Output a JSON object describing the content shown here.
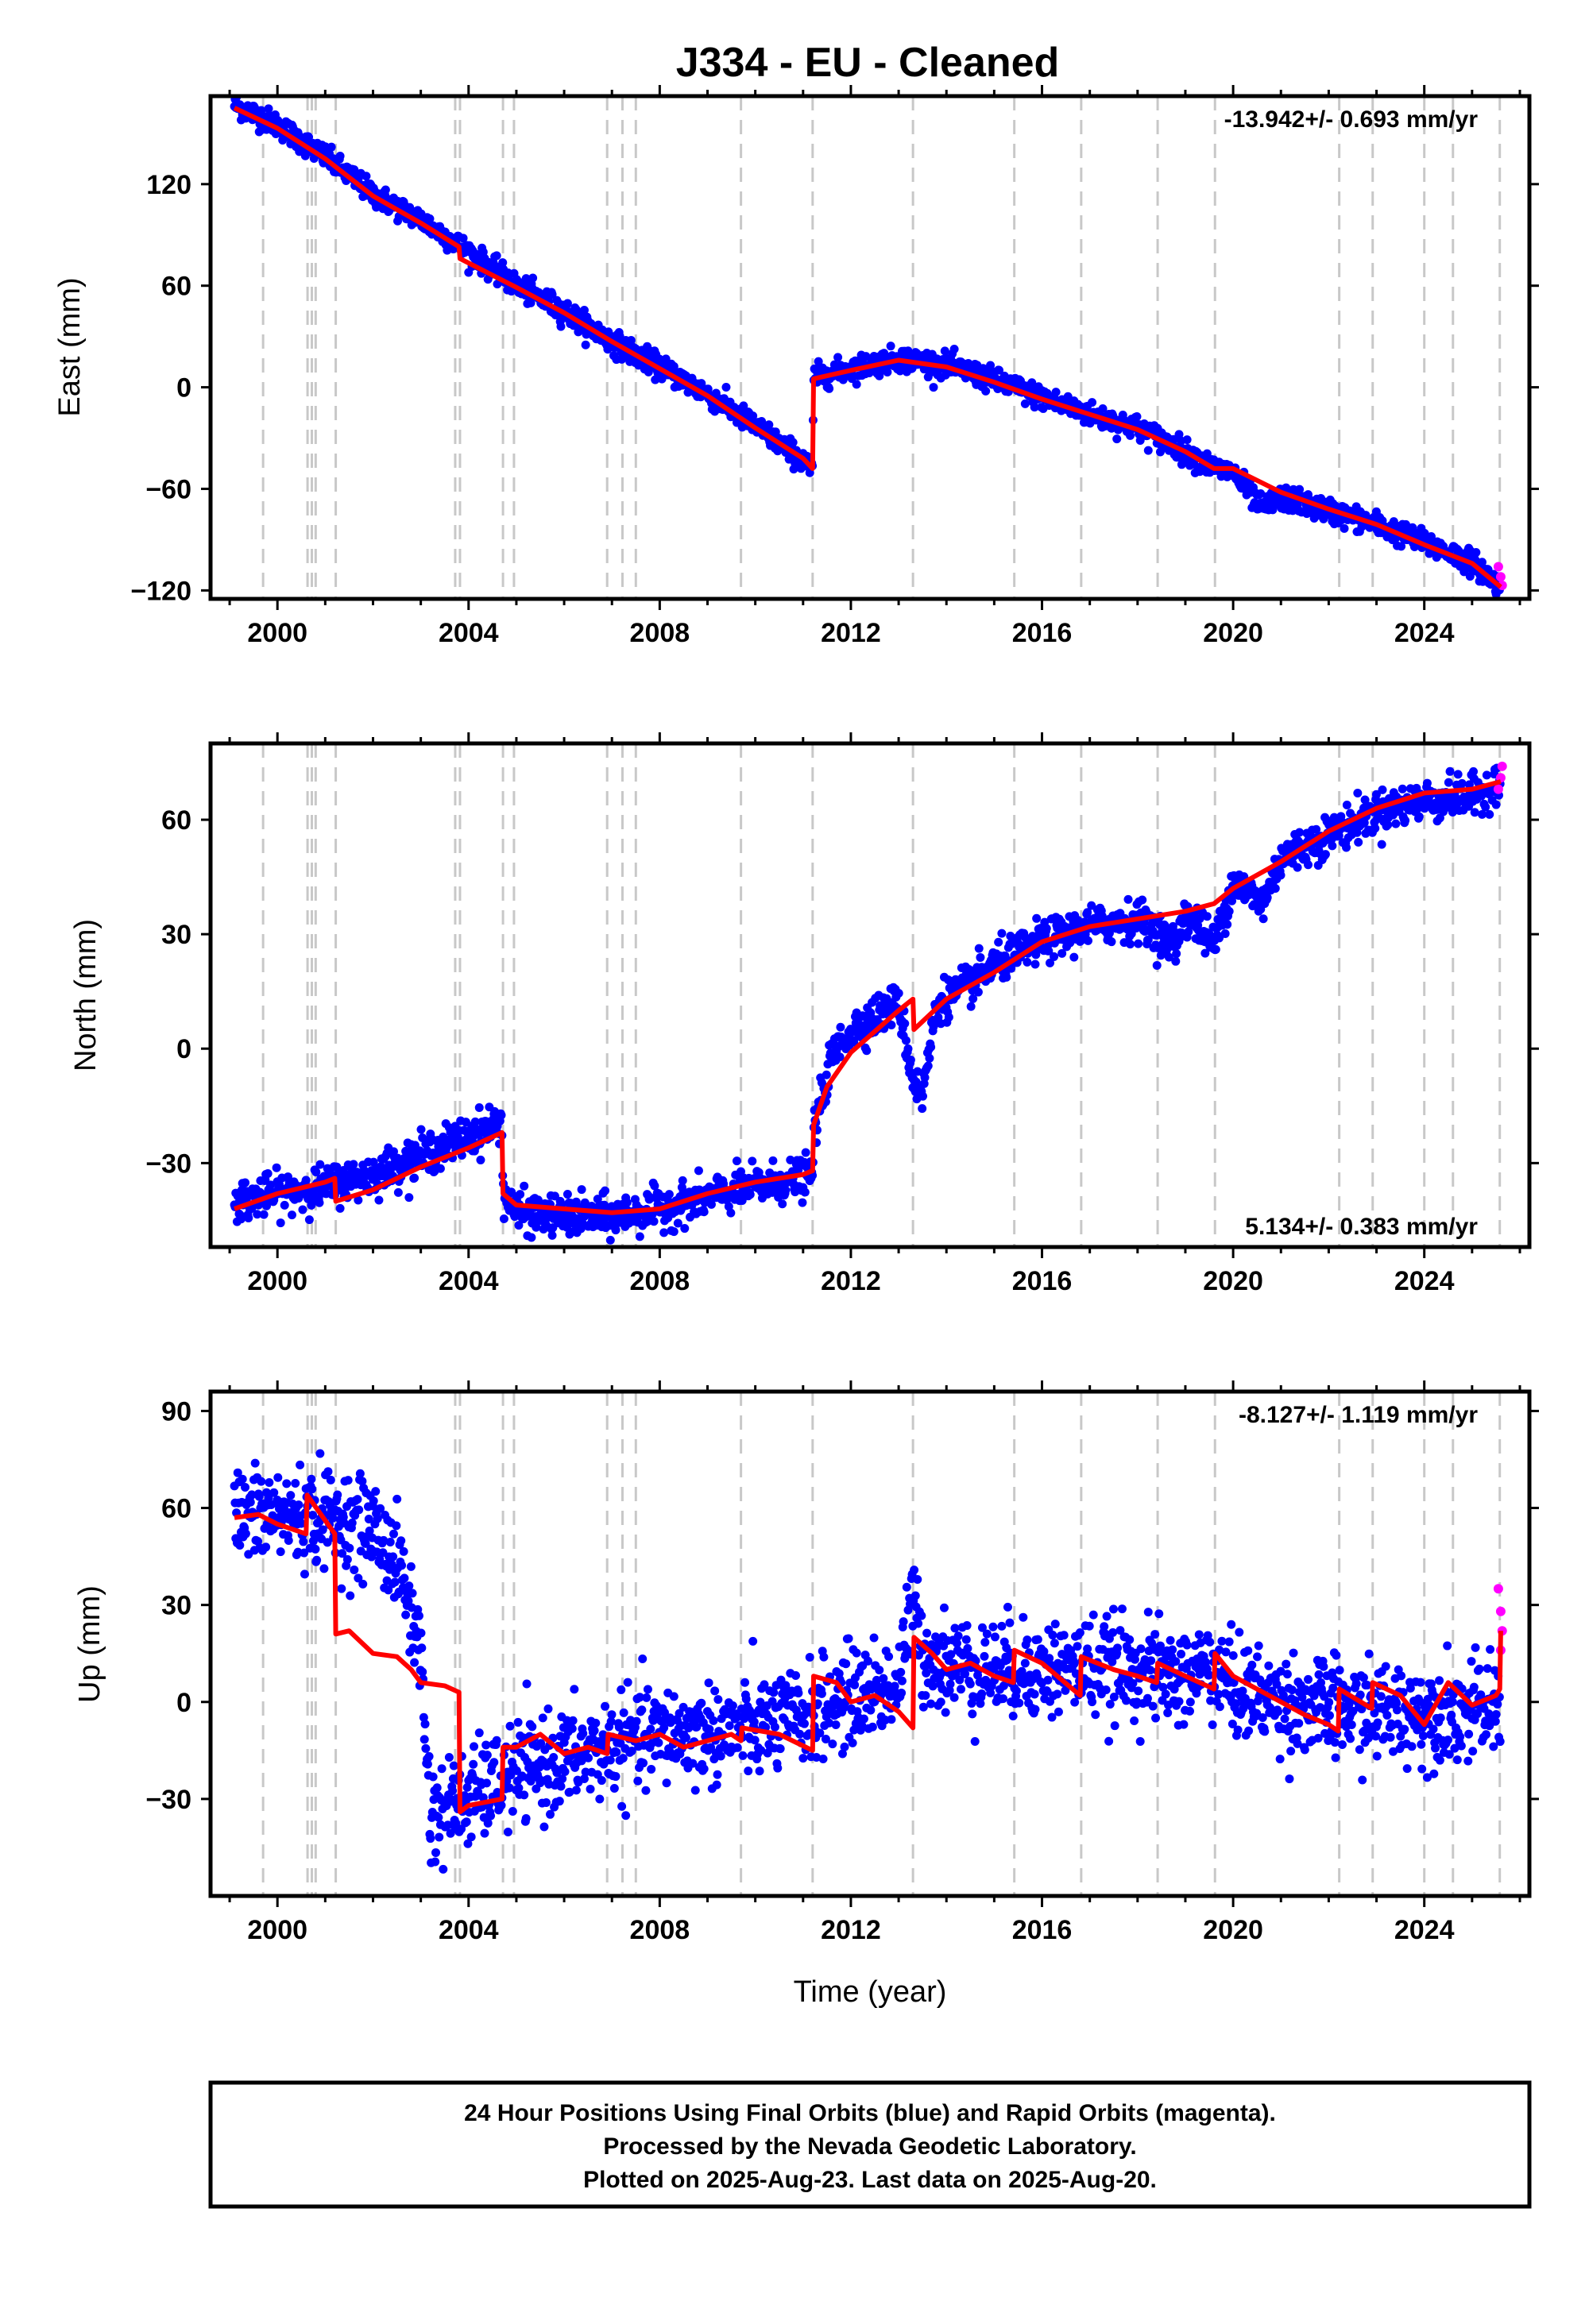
{
  "title": "J334  - EU - Cleaned",
  "xlabel": "Time (year)",
  "footer": {
    "line1": "24 Hour Positions Using Final Orbits (blue) and Rapid Orbits (magenta).",
    "line2": "Processed by the Nevada Geodetic Laboratory.",
    "line3": "Plotted on 2025-Aug-23. Last data on 2025-Aug-20."
  },
  "colors": {
    "final": "#0000ff",
    "rapid": "#ff00ff",
    "model": "#ff0000",
    "event_lines": "#c8c8c8"
  },
  "chart_data": [
    {
      "type": "scatter",
      "id": "east",
      "ylabel": "East (mm)",
      "rate_text": "-13.942+/- 0.693 mm/yr",
      "xlim": [
        1998.6,
        2026.2
      ],
      "ylim": [
        -125,
        172
      ],
      "yticks": [
        -120,
        -60,
        0,
        60,
        120
      ],
      "xticks": [
        2000,
        2004,
        2008,
        2012,
        2016,
        2020,
        2024
      ],
      "grid": false,
      "noise": 3.5,
      "series": [
        {
          "name": "Final Orbits",
          "color": "#0000ff",
          "x": [
            1999.1,
            2000.0,
            2001.0,
            2002.0,
            2003.0,
            2004.0,
            2005.0,
            2006.0,
            2007.0,
            2008.0,
            2009.0,
            2010.0,
            2011.0,
            2011.2,
            2011.22,
            2012.0,
            2013.0,
            2014.0,
            2015.0,
            2016.0,
            2017.0,
            2018.0,
            2019.0,
            2019.6,
            2020.0,
            2020.6,
            2021.0,
            2022.0,
            2023.0,
            2024.0,
            2025.0,
            2025.6
          ],
          "y": [
            167,
            155,
            136,
            114,
            99,
            80,
            60,
            45,
            27,
            12,
            -4,
            -23,
            -43,
            -50,
            6,
            11,
            17,
            13,
            4,
            -6,
            -16,
            -24,
            -38,
            -48,
            -50,
            -72,
            -65,
            -73,
            -81,
            -92,
            -103,
            -118
          ]
        },
        {
          "name": "Rapid Orbits",
          "color": "#ff00ff",
          "x": [
            2025.55,
            2025.6,
            2025.63
          ],
          "y": [
            -106,
            -112,
            -117
          ]
        },
        {
          "name": "Model",
          "color": "#ff0000",
          "x": [
            1999.1,
            2000.0,
            2001.0,
            2002.0,
            2003.0,
            2003.8,
            2003.82,
            2005.0,
            2006.0,
            2007.0,
            2008.0,
            2009.0,
            2010.0,
            2011.0,
            2011.2,
            2011.22,
            2012.0,
            2013.0,
            2014.0,
            2015.0,
            2016.0,
            2017.0,
            2018.0,
            2019.0,
            2019.6,
            2020.0,
            2021.0,
            2022.0,
            2023.0,
            2024.0,
            2025.0,
            2025.6
          ],
          "y": [
            165,
            153,
            135,
            113,
            97,
            83,
            76,
            59,
            44,
            27,
            11,
            -5,
            -24,
            -42,
            -48,
            5,
            10,
            16,
            12,
            3,
            -7,
            -16,
            -25,
            -38,
            -48,
            -48,
            -62,
            -72,
            -81,
            -93,
            -104,
            -118
          ]
        }
      ]
    },
    {
      "type": "scatter",
      "id": "north",
      "ylabel": "North (mm)",
      "rate_text": "5.134+/- 0.383 mm/yr",
      "xlim": [
        1998.6,
        2026.2
      ],
      "ylim": [
        -52,
        80
      ],
      "yticks": [
        -30,
        0,
        30,
        60
      ],
      "xticks": [
        2000,
        2004,
        2008,
        2012,
        2016,
        2020,
        2024
      ],
      "grid": false,
      "noise": 2.6,
      "series": [
        {
          "name": "Final Orbits",
          "color": "#0000ff",
          "x": [
            1999.1,
            2000.0,
            2001.0,
            2002.0,
            2003.0,
            2004.0,
            2004.7,
            2004.72,
            2005.0,
            2006.0,
            2007.0,
            2008.0,
            2009.0,
            2010.0,
            2011.0,
            2011.2,
            2011.22,
            2011.6,
            2012.0,
            2013.0,
            2013.3,
            2013.5,
            2013.8,
            2014.5,
            2015.0,
            2016.0,
            2017.0,
            2018.0,
            2018.8,
            2019.0,
            2019.6,
            2020.0,
            2020.6,
            2021.0,
            2022.0,
            2023.0,
            2024.0,
            2025.0,
            2025.6
          ],
          "y": [
            -40,
            -38,
            -36,
            -33,
            -28,
            -23,
            -19,
            -38,
            -43,
            -44,
            -44,
            -42,
            -39,
            -36,
            -34,
            -33,
            -22,
            -2,
            5,
            12,
            -8,
            -12,
            12,
            17,
            22,
            28,
            32,
            34,
            27,
            36,
            27,
            44,
            38,
            50,
            56,
            62,
            65,
            66,
            70
          ]
        },
        {
          "name": "Rapid Orbits",
          "color": "#ff00ff",
          "x": [
            2025.55,
            2025.6,
            2025.63
          ],
          "y": [
            68,
            71,
            74
          ]
        },
        {
          "name": "Model",
          "color": "#ff0000",
          "x": [
            1999.1,
            2000.0,
            2001.0,
            2001.2,
            2001.22,
            2002.0,
            2003.0,
            2004.0,
            2004.7,
            2004.72,
            2005.0,
            2006.0,
            2007.0,
            2008.0,
            2009.0,
            2010.0,
            2011.0,
            2011.2,
            2011.22,
            2011.5,
            2012.0,
            2013.0,
            2013.3,
            2013.32,
            2014.0,
            2015.0,
            2016.0,
            2017.0,
            2018.0,
            2019.0,
            2019.6,
            2020.0,
            2021.0,
            2022.0,
            2023.0,
            2024.0,
            2025.0,
            2025.6
          ],
          "y": [
            -42,
            -38,
            -35,
            -34,
            -40,
            -37,
            -31,
            -26,
            -22,
            -38,
            -41,
            -42,
            -43,
            -42,
            -38,
            -35,
            -33,
            -32,
            -20,
            -10,
            -1,
            10,
            13,
            5,
            13,
            20,
            28,
            32,
            34,
            36,
            38,
            42,
            49,
            57,
            63,
            67,
            68,
            70
          ]
        }
      ]
    },
    {
      "type": "scatter",
      "id": "up",
      "ylabel": "Up (mm)",
      "rate_text": "-8.127+/- 1.119 mm/yr",
      "xlim": [
        1998.6,
        2026.2
      ],
      "ylim": [
        -60,
        96
      ],
      "yticks": [
        -30,
        0,
        30,
        60,
        90
      ],
      "xticks": [
        2000,
        2004,
        2008,
        2012,
        2016,
        2020,
        2024
      ],
      "grid": false,
      "noise": 7.5,
      "series": [
        {
          "name": "Final Orbits",
          "color": "#0000ff",
          "x": [
            1999.1,
            2000.0,
            2001.0,
            2002.0,
            2002.6,
            2003.0,
            2003.2,
            2004.0,
            2005.0,
            2006.0,
            2007.0,
            2008.0,
            2009.0,
            2010.0,
            2011.0,
            2012.0,
            2013.0,
            2013.3,
            2013.5,
            2014.0,
            2015.0,
            2016.0,
            2017.0,
            2018.0,
            2019.0,
            2019.5,
            2020.0,
            2021.0,
            2022.0,
            2023.0,
            2024.0,
            2025.0,
            2025.6
          ],
          "y": [
            57,
            58,
            57,
            54,
            40,
            15,
            -35,
            -30,
            -22,
            -18,
            -14,
            -10,
            -10,
            -8,
            -5,
            2,
            5,
            30,
            15,
            12,
            10,
            10,
            11,
            10,
            7,
            12,
            4,
            0,
            -2,
            -3,
            -3,
            -3,
            -2
          ]
        },
        {
          "name": "Rapid Orbits",
          "color": "#ff00ff",
          "x": [
            2025.55,
            2025.6,
            2025.63,
            2025.6
          ],
          "y": [
            35,
            28,
            22,
            16
          ]
        },
        {
          "name": "Model",
          "color": "#ff0000",
          "x": [
            1999.1,
            1999.6,
            2000.0,
            2000.6,
            2000.62,
            2001.2,
            2001.22,
            2001.5,
            2002.0,
            2002.5,
            2002.8,
            2003.0,
            2003.5,
            2003.8,
            2003.82,
            2004.0,
            2004.7,
            2004.72,
            2005.0,
            2005.5,
            2006.0,
            2006.5,
            2006.9,
            2006.92,
            2007.5,
            2008.0,
            2008.5,
            2009.0,
            2009.5,
            2009.7,
            2009.72,
            2010.5,
            2011.2,
            2011.22,
            2011.7,
            2012.0,
            2012.5,
            2013.0,
            2013.3,
            2013.32,
            2013.7,
            2014.0,
            2014.5,
            2015.0,
            2015.4,
            2015.42,
            2016.0,
            2016.8,
            2016.82,
            2017.5,
            2018.0,
            2018.4,
            2018.42,
            2019.0,
            2019.6,
            2019.62,
            2020.0,
            2020.5,
            2021.0,
            2021.5,
            2022.0,
            2022.2,
            2022.22,
            2022.9,
            2022.92,
            2023.5,
            2024.0,
            2024.5,
            2025.0,
            2025.5,
            2025.58,
            2025.6
          ],
          "y": [
            57,
            58,
            55,
            52,
            64,
            52,
            21,
            22,
            15,
            14,
            10,
            6,
            5,
            3,
            -34,
            -32,
            -30,
            -14,
            -14,
            -10,
            -16,
            -14,
            -16,
            -10,
            -12,
            -10,
            -14,
            -12,
            -10,
            -12,
            -8,
            -10,
            -15,
            8,
            6,
            0,
            2,
            -3,
            -8,
            20,
            15,
            10,
            12,
            8,
            6,
            16,
            12,
            2,
            14,
            10,
            8,
            6,
            12,
            8,
            4,
            15,
            8,
            4,
            0,
            -4,
            -7,
            -9,
            4,
            -2,
            6,
            2,
            -7,
            6,
            -1,
            2,
            4,
            22
          ]
        }
      ]
    }
  ],
  "event_lines": [
    1999.7,
    2000.63,
    2000.72,
    2000.8,
    2001.22,
    2003.72,
    2003.82,
    2004.72,
    2004.95,
    2006.9,
    2007.22,
    2007.5,
    2009.7,
    2011.2,
    2013.3,
    2015.42,
    2016.82,
    2018.42,
    2019.62,
    2022.22,
    2022.92,
    2024.0,
    2024.6,
    2025.58
  ]
}
